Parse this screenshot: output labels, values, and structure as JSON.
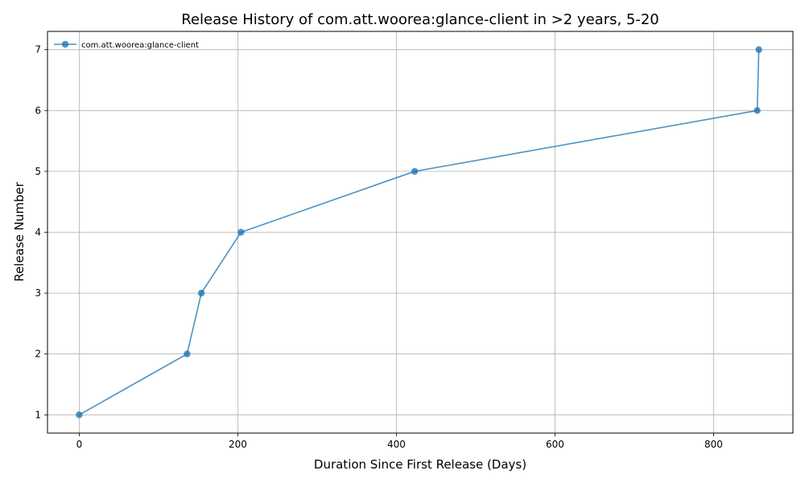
{
  "chart_data": {
    "type": "line",
    "title": "Release History of com.att.woorea:glance-client in >2 years, 5-20",
    "xlabel": "Duration Since First Release (Days)",
    "ylabel": "Release Number",
    "xlim": [
      -40,
      900
    ],
    "ylim": [
      0.7,
      7.3
    ],
    "xticks": [
      0,
      200,
      400,
      600,
      800
    ],
    "yticks": [
      1,
      2,
      3,
      4,
      5,
      6,
      7
    ],
    "grid": true,
    "legend_position": "top-left",
    "series": [
      {
        "name": "com.att.woorea:glance-client",
        "color": "#1f77b4",
        "marker": "circle",
        "x": [
          0,
          136,
          154,
          204,
          423,
          855,
          857
        ],
        "y": [
          1,
          2,
          3,
          4,
          5,
          6,
          7
        ]
      }
    ]
  }
}
